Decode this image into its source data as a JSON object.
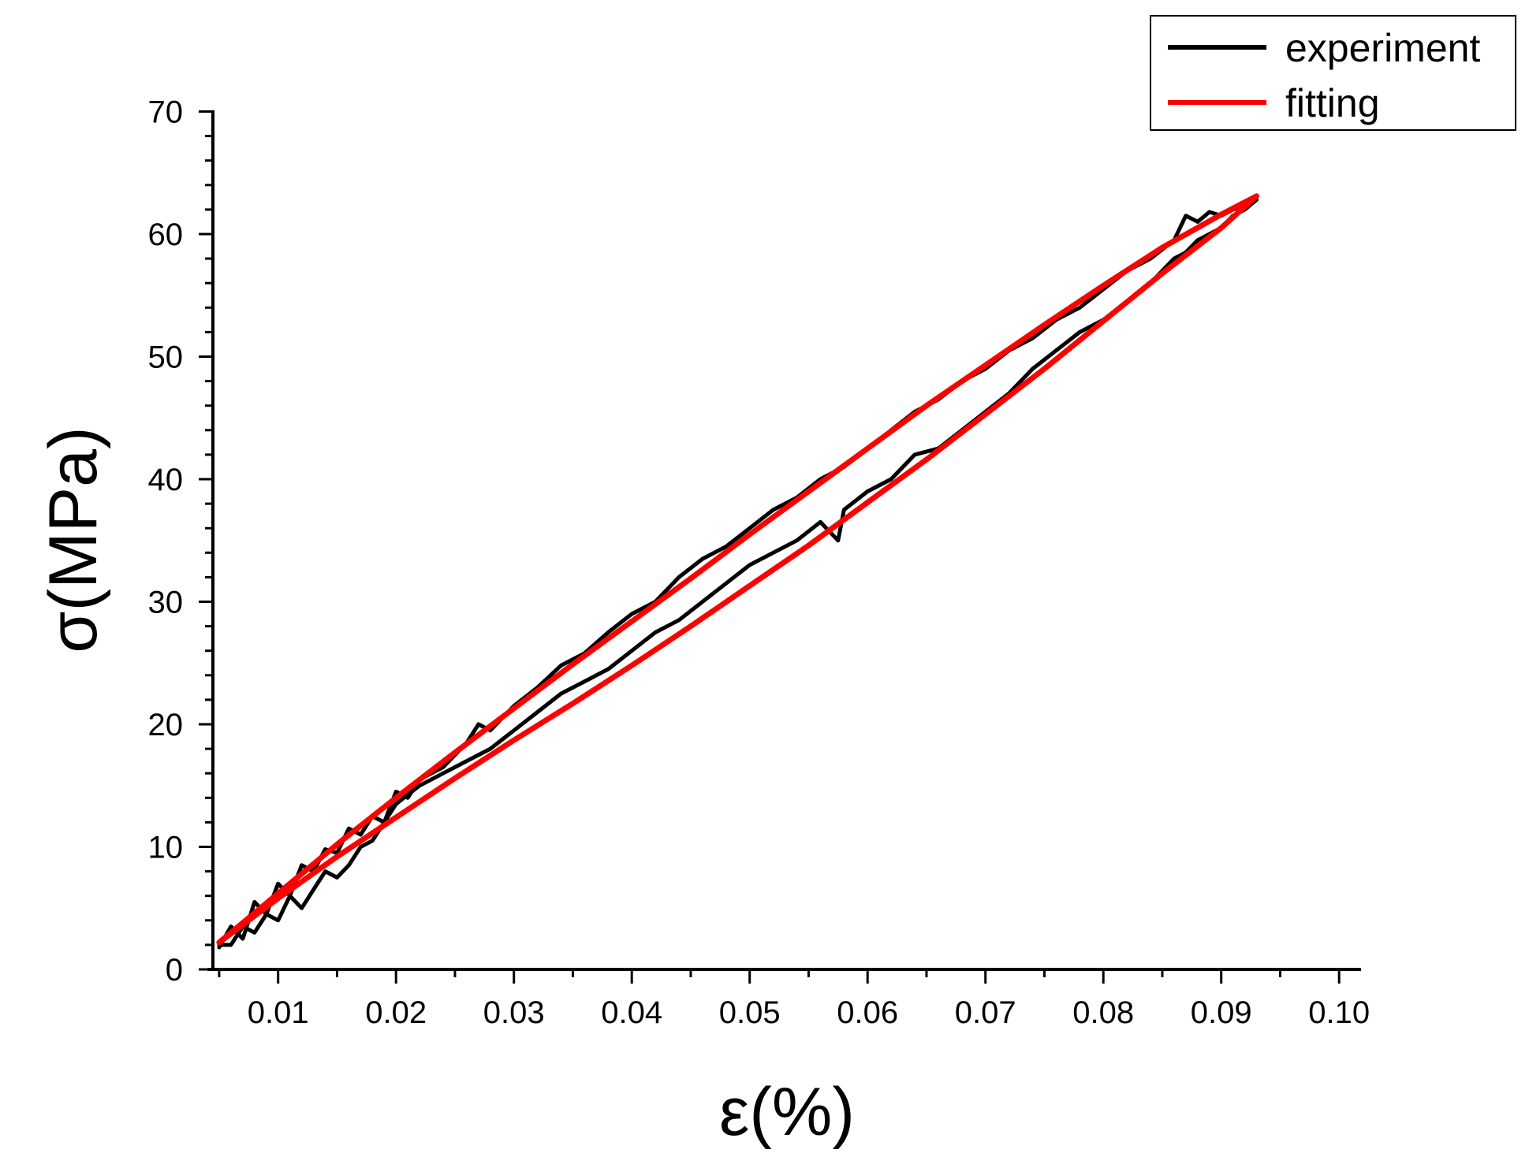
{
  "chart_data": {
    "type": "line",
    "xlabel": "ε(%)",
    "ylabel": "σ(MPa)",
    "xlim": [
      0.004,
      0.1
    ],
    "ylim": [
      0,
      70
    ],
    "x_ticks": [
      "0.01",
      "0.02",
      "0.03",
      "0.04",
      "0.05",
      "0.06",
      "0.07",
      "0.08",
      "0.09",
      "0.10"
    ],
    "y_ticks": [
      "0",
      "10",
      "20",
      "30",
      "40",
      "50",
      "60",
      "70"
    ],
    "grid": false,
    "legend_position": "top-right",
    "colors": {
      "experiment": "#000000",
      "fitting": "#ff0000"
    },
    "series": [
      {
        "name": "experiment",
        "color": "#000000",
        "x": [
          0.005,
          0.006,
          0.007,
          0.008,
          0.009,
          0.01,
          0.011,
          0.012,
          0.013,
          0.014,
          0.015,
          0.016,
          0.017,
          0.018,
          0.019,
          0.02,
          0.021,
          0.022,
          0.024,
          0.026,
          0.027,
          0.028,
          0.03,
          0.032,
          0.034,
          0.036,
          0.038,
          0.04,
          0.042,
          0.044,
          0.046,
          0.048,
          0.05,
          0.052,
          0.054,
          0.056,
          0.058,
          0.06,
          0.062,
          0.064,
          0.066,
          0.068,
          0.07,
          0.072,
          0.074,
          0.076,
          0.078,
          0.08,
          0.082,
          0.084,
          0.086,
          0.087,
          0.088,
          0.089,
          0.09,
          0.091,
          0.092,
          0.093,
          0.092,
          0.091,
          0.09,
          0.089,
          0.088,
          0.087,
          0.086,
          0.085,
          0.084,
          0.082,
          0.08,
          0.078,
          0.076,
          0.074,
          0.072,
          0.07,
          0.068,
          0.066,
          0.064,
          0.062,
          0.06,
          0.058,
          0.0575,
          0.056,
          0.054,
          0.052,
          0.05,
          0.048,
          0.046,
          0.044,
          0.042,
          0.04,
          0.038,
          0.036,
          0.034,
          0.032,
          0.03,
          0.028,
          0.026,
          0.024,
          0.022,
          0.02,
          0.019,
          0.018,
          0.017,
          0.016,
          0.015,
          0.014,
          0.013,
          0.012,
          0.011,
          0.01,
          0.009,
          0.008,
          0.007,
          0.006,
          0.005
        ],
        "y": [
          1.8,
          3.5,
          2.5,
          5.5,
          4.5,
          7.0,
          6.0,
          8.5,
          8.0,
          9.8,
          9.5,
          11.5,
          11.0,
          12.5,
          12.0,
          14.5,
          14.0,
          15.5,
          16.5,
          18.5,
          20.0,
          19.5,
          21.5,
          23.0,
          24.8,
          25.8,
          27.5,
          29.0,
          30.0,
          32.0,
          33.5,
          34.5,
          36.0,
          37.5,
          38.5,
          40.0,
          41.0,
          42.5,
          44.0,
          45.5,
          46.5,
          48.0,
          49.0,
          50.5,
          51.5,
          53.0,
          54.0,
          55.5,
          57.0,
          58.0,
          59.5,
          61.5,
          61.0,
          61.8,
          61.5,
          62.0,
          62.3,
          62.8,
          62.0,
          61.5,
          60.5,
          60.0,
          59.5,
          58.5,
          58.0,
          57.0,
          56.0,
          54.5,
          53.0,
          52.0,
          50.5,
          49.0,
          47.0,
          45.5,
          44.0,
          42.5,
          42.0,
          40.0,
          39.0,
          37.5,
          35.0,
          36.5,
          35.0,
          34.0,
          33.0,
          31.5,
          30.0,
          28.5,
          27.5,
          26.0,
          24.5,
          23.5,
          22.5,
          21.0,
          19.5,
          18.0,
          17.0,
          16.0,
          15.0,
          13.5,
          12.0,
          10.5,
          10.0,
          8.5,
          7.5,
          8.0,
          6.5,
          5.0,
          6.0,
          4.0,
          4.5,
          3.0,
          3.5,
          2.0,
          2.0
        ]
      },
      {
        "name": "fitting",
        "color": "#ff0000",
        "x": [
          0.005,
          0.01,
          0.015,
          0.02,
          0.025,
          0.03,
          0.035,
          0.04,
          0.045,
          0.05,
          0.055,
          0.06,
          0.065,
          0.07,
          0.075,
          0.08,
          0.085,
          0.09,
          0.093,
          0.09,
          0.085,
          0.08,
          0.075,
          0.07,
          0.065,
          0.06,
          0.055,
          0.05,
          0.045,
          0.04,
          0.035,
          0.03,
          0.025,
          0.02,
          0.015,
          0.01,
          0.005
        ],
        "y": [
          2.2,
          6.2,
          10.2,
          14.0,
          17.7,
          21.3,
          24.9,
          28.4,
          31.9,
          35.5,
          39.0,
          42.5,
          46.0,
          49.3,
          52.6,
          55.8,
          58.9,
          61.6,
          63.1,
          60.5,
          56.8,
          52.9,
          49.0,
          45.3,
          41.6,
          38.1,
          34.6,
          31.3,
          28.0,
          24.8,
          21.7,
          18.7,
          15.6,
          12.4,
          9.2,
          5.8,
          2.2
        ]
      }
    ]
  }
}
